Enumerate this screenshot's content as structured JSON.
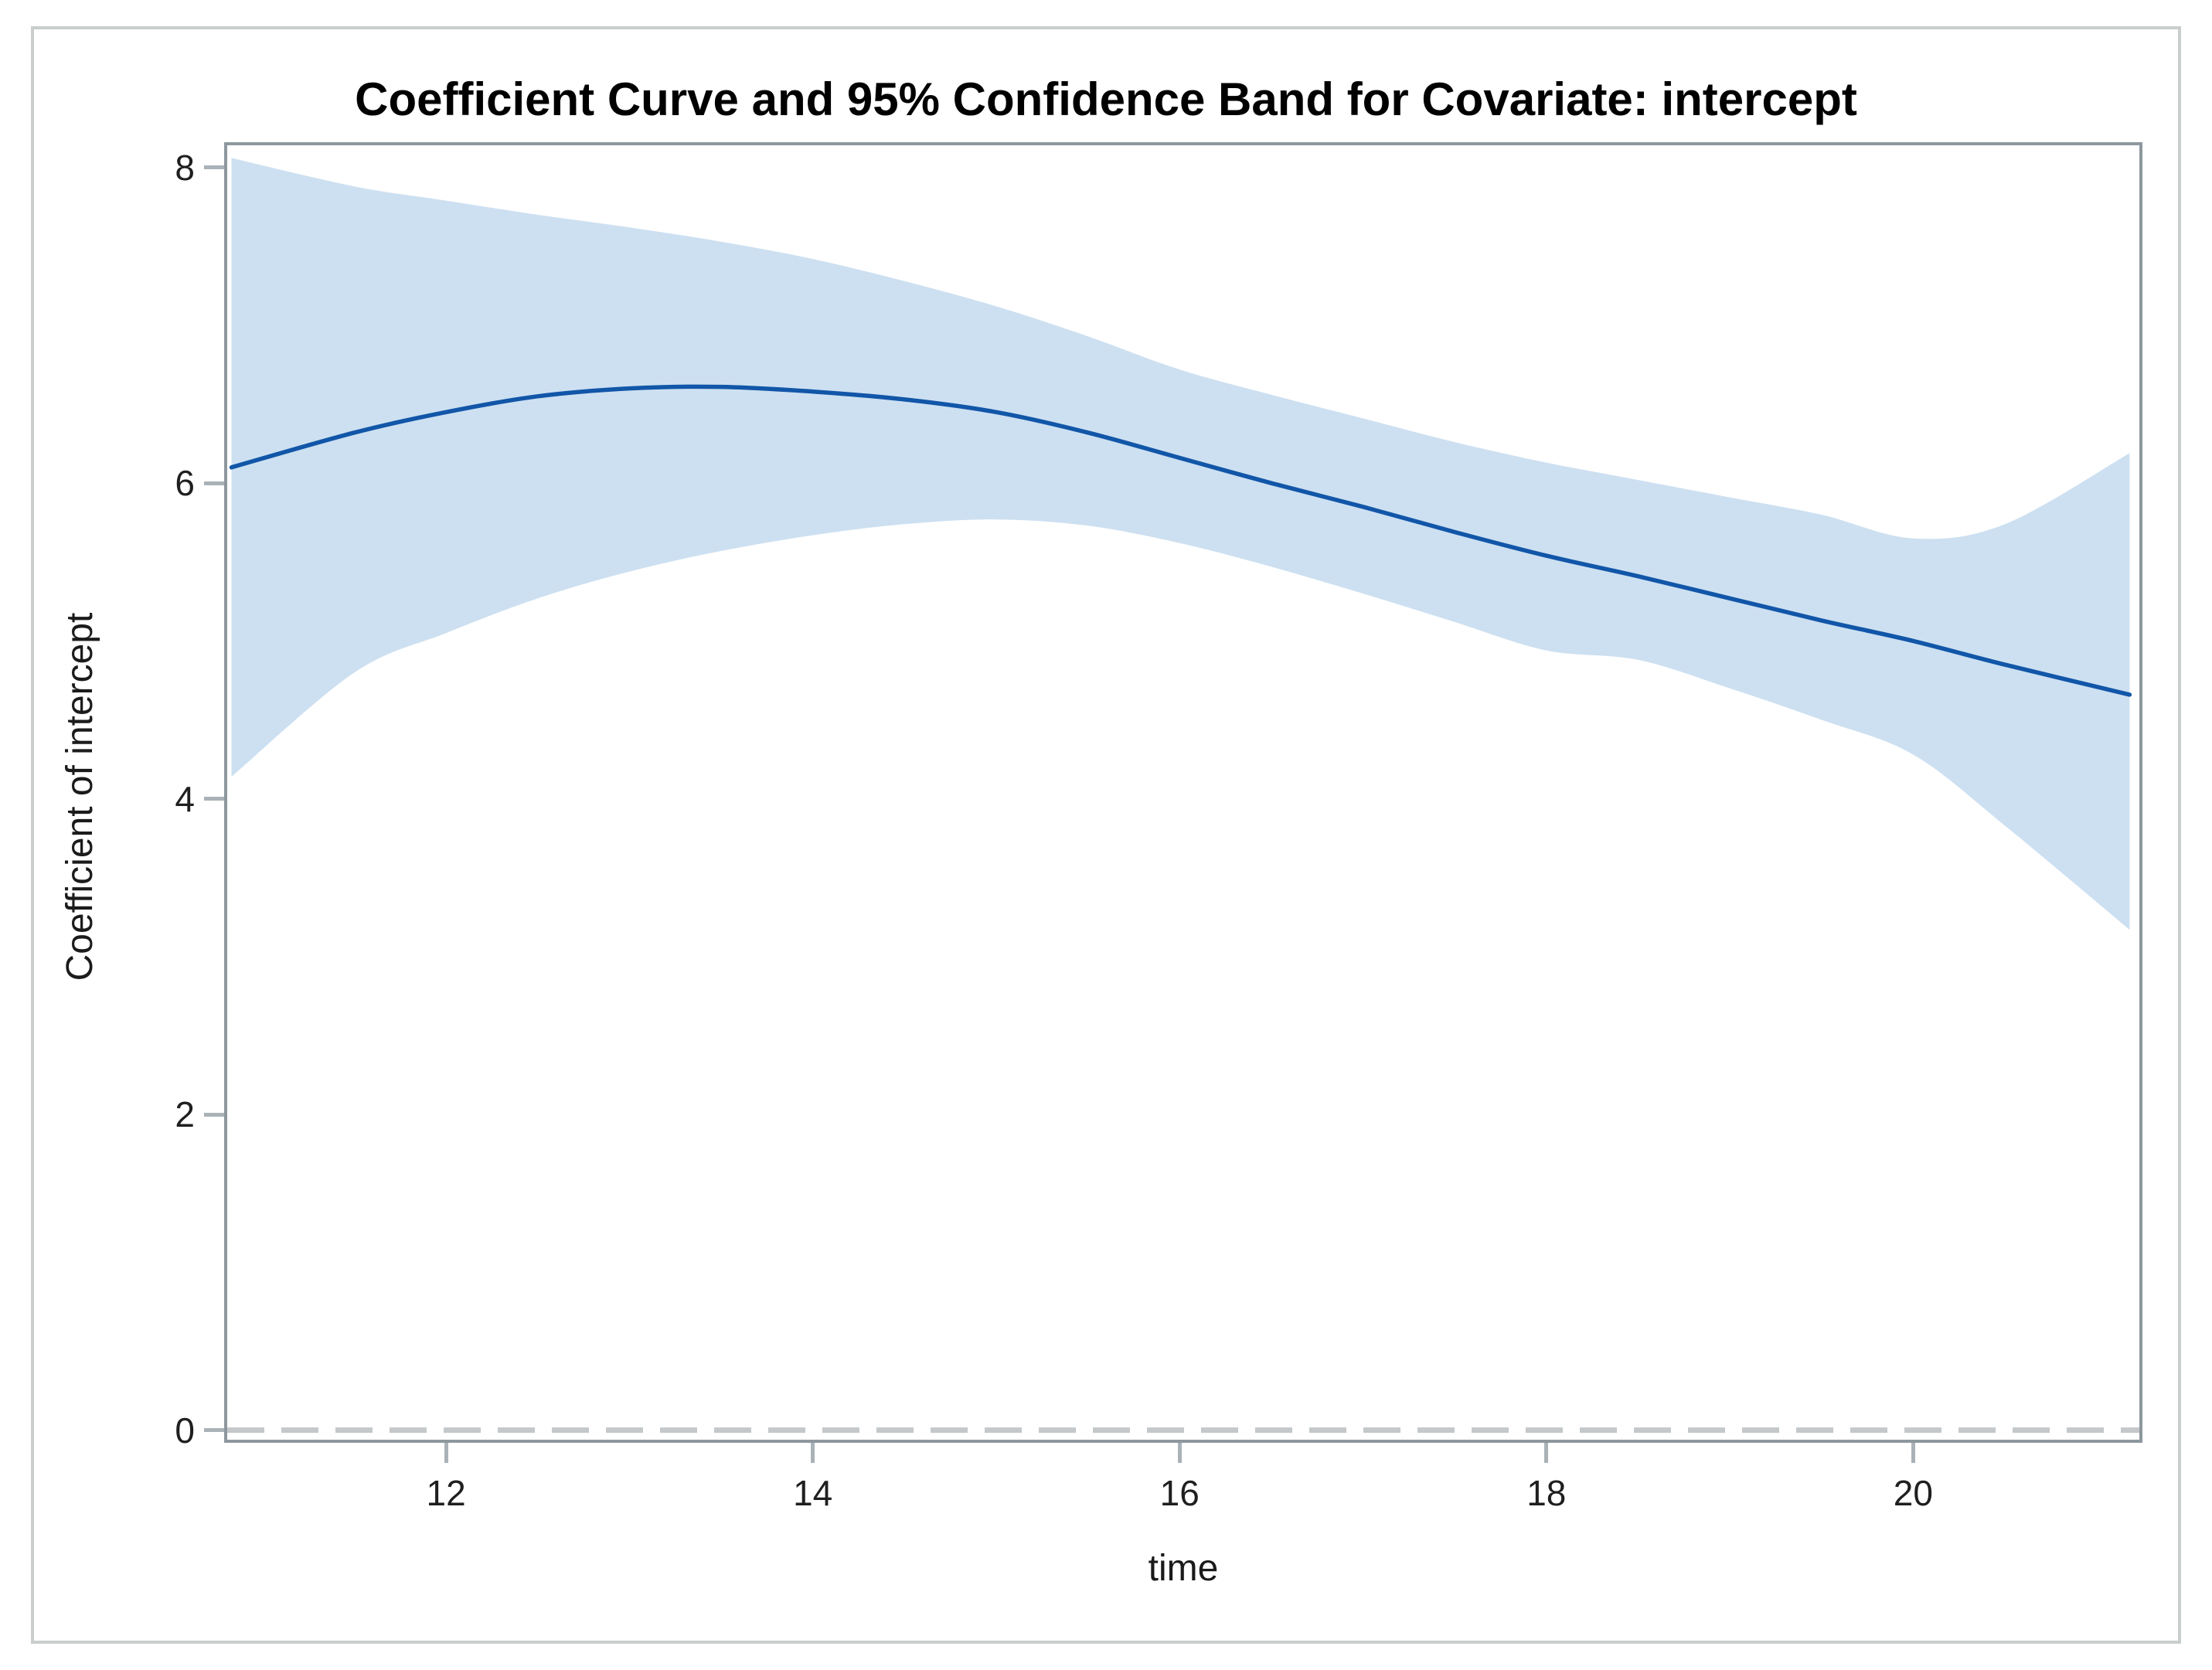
{
  "figure": {
    "title": "Coefficient Curve and 95% Confidence Band for Covariate: intercept",
    "colors": {
      "band_fill": "#cde0f1",
      "curve_stroke": "#1156a8",
      "plot_frame": "#8d989e",
      "tick_mark": "#a9b2b7",
      "zero_reference_line": "#c4c8ca",
      "figure_border": "#c9cdcc",
      "text": "#000000"
    }
  },
  "chart_data": {
    "type": "line",
    "title": "Coefficient Curve and 95% Confidence Band for Covariate: intercept",
    "xlabel": "time",
    "ylabel": "Coefficient of intercept",
    "xlim": [
      10.79,
      21.25
    ],
    "ylim": [
      -0.08,
      8.16
    ],
    "x_ticks": [
      12,
      14,
      16,
      18,
      20
    ],
    "y_ticks": [
      0,
      2,
      4,
      6,
      8
    ],
    "grid": false,
    "legend": "none",
    "reference_line_y": 0,
    "band_label": "95% Confidence Band",
    "x": [
      10.83,
      11.5,
      12,
      12.5,
      13,
      13.5,
      14,
      14.5,
      15,
      15.5,
      16,
      16.5,
      17,
      17.5,
      18,
      18.5,
      19,
      19.5,
      20,
      20.5,
      21.18
    ],
    "series": [
      {
        "name": "coefficient_curve",
        "values": [
          6.1,
          6.32,
          6.45,
          6.55,
          6.6,
          6.61,
          6.58,
          6.53,
          6.45,
          6.32,
          6.16,
          6.0,
          5.85,
          5.69,
          5.54,
          5.41,
          5.27,
          5.13,
          5.0,
          4.85,
          4.66
        ]
      },
      {
        "name": "upper_95_band",
        "values": [
          8.06,
          7.88,
          7.79,
          7.7,
          7.62,
          7.53,
          7.42,
          7.28,
          7.12,
          6.93,
          6.72,
          6.56,
          6.41,
          6.26,
          6.13,
          6.02,
          5.91,
          5.8,
          5.65,
          5.74,
          6.19
        ]
      },
      {
        "name": "lower_95_band",
        "values": [
          4.14,
          4.8,
          5.05,
          5.27,
          5.44,
          5.57,
          5.67,
          5.74,
          5.77,
          5.73,
          5.62,
          5.47,
          5.3,
          5.12,
          4.94,
          4.88,
          4.7,
          4.5,
          4.28,
          3.83,
          3.17
        ]
      }
    ]
  }
}
